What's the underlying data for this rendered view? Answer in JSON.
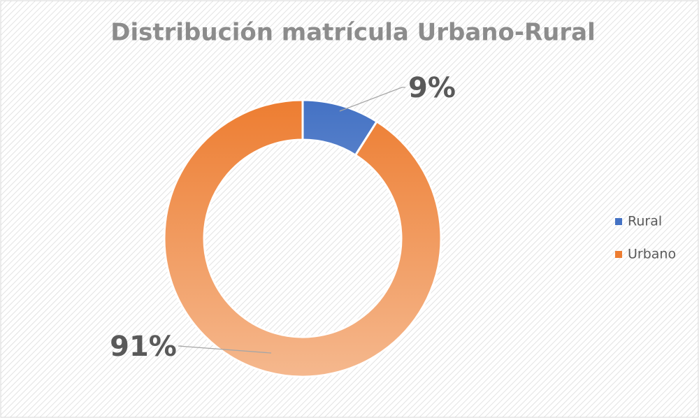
{
  "chart_data": {
    "type": "donut",
    "title": "Distribución matrícula Urbano-Rural",
    "categories": [
      "Rural",
      "Urbano"
    ],
    "values": [
      9,
      91
    ],
    "value_labels": [
      "9%",
      "91%"
    ],
    "colors": [
      "#4472c4",
      "#ed7d31"
    ],
    "legend": "right"
  }
}
